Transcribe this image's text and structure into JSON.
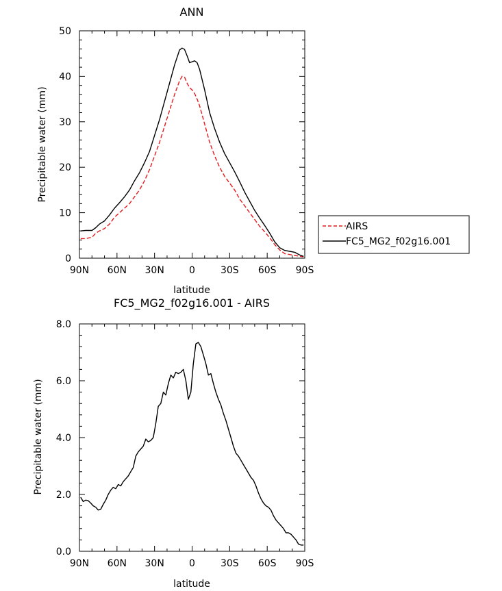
{
  "chart_data": [
    {
      "type": "line",
      "title": "ANN",
      "xlabel": "latitude",
      "ylabel": "Precipitable water (mm)",
      "xlim": [
        90,
        -90
      ],
      "ylim": [
        0,
        50
      ],
      "xticks": [
        90,
        60,
        30,
        0,
        -30,
        -60,
        -90
      ],
      "xtick_labels": [
        "90N",
        "60N",
        "30N",
        "0",
        "30S",
        "60S",
        "90S"
      ],
      "yticks": [
        0,
        10,
        20,
        30,
        40,
        50
      ],
      "ytick_labels": [
        "0",
        "10",
        "20",
        "30",
        "40",
        "50"
      ],
      "grid": false,
      "legend_position": "right",
      "series": [
        {
          "name": "AIRS",
          "color": "#e41a1c",
          "dash": "dashed",
          "x": [
            89,
            85,
            80,
            77,
            74,
            70,
            66,
            62,
            58,
            54,
            50,
            46,
            42,
            38,
            34,
            30,
            26,
            22,
            18,
            14,
            10,
            8,
            6,
            4,
            2,
            0,
            -2,
            -4,
            -6,
            -10,
            -14,
            -18,
            -22,
            -26,
            -30,
            -34,
            -38,
            -42,
            -46,
            -50,
            -54,
            -58,
            -62,
            -66,
            -70,
            -74,
            -78,
            -82,
            -86,
            -89
          ],
          "values": [
            4.3,
            4.3,
            4.6,
            5.5,
            6.0,
            6.5,
            7.5,
            9.0,
            10.0,
            11.0,
            12.0,
            13.5,
            15.0,
            17.0,
            19.5,
            22.5,
            25.5,
            29.0,
            32.5,
            36.0,
            39.0,
            40.0,
            39.8,
            38.5,
            37.5,
            37.0,
            36.2,
            35.0,
            33.5,
            29.5,
            25.5,
            22.5,
            20.0,
            18.0,
            16.5,
            15.0,
            13.0,
            11.5,
            10.0,
            8.5,
            7.0,
            5.8,
            4.5,
            3.0,
            1.8,
            1.0,
            0.8,
            0.6,
            0.4,
            0.3
          ]
        },
        {
          "name": "FC5_MG2_f02g16.001",
          "color": "#000000",
          "dash": "solid",
          "x": [
            89,
            85,
            80,
            77,
            74,
            70,
            66,
            62,
            58,
            54,
            50,
            46,
            42,
            38,
            34,
            30,
            26,
            22,
            18,
            14,
            10,
            8,
            6,
            4,
            2,
            0,
            -2,
            -4,
            -6,
            -10,
            -14,
            -18,
            -22,
            -26,
            -30,
            -34,
            -38,
            -42,
            -46,
            -50,
            -54,
            -58,
            -62,
            -66,
            -70,
            -74,
            -78,
            -82,
            -86,
            -89
          ],
          "values": [
            6.0,
            6.1,
            6.1,
            6.7,
            7.5,
            8.2,
            9.5,
            11.0,
            12.2,
            13.5,
            15.0,
            17.0,
            18.8,
            21.0,
            23.5,
            27.0,
            30.5,
            34.5,
            38.5,
            42.5,
            45.8,
            46.2,
            45.9,
            44.5,
            43.0,
            43.2,
            43.4,
            43.0,
            41.5,
            37.0,
            32.0,
            28.5,
            25.5,
            23.0,
            21.0,
            19.0,
            16.8,
            14.5,
            12.5,
            10.5,
            8.8,
            7.2,
            5.5,
            3.6,
            2.3,
            1.7,
            1.5,
            1.3,
            0.7,
            0.4
          ]
        }
      ]
    },
    {
      "type": "line",
      "title": "FC5_MG2_f02g16.001 - AIRS",
      "xlabel": "latitude",
      "ylabel": "Precipitable water (mm)",
      "xlim": [
        90,
        -90
      ],
      "ylim": [
        0,
        8
      ],
      "xticks": [
        90,
        60,
        30,
        0,
        -30,
        -60,
        -90
      ],
      "xtick_labels": [
        "90N",
        "60N",
        "30N",
        "0",
        "30S",
        "60S",
        "90S"
      ],
      "yticks": [
        0,
        2,
        4,
        6,
        8
      ],
      "ytick_labels": [
        "0.0",
        "2.0",
        "4.0",
        "6.0",
        "8.0"
      ],
      "grid": false,
      "series": [
        {
          "color": "#000000",
          "dash": "solid",
          "x": [
            89,
            87,
            85,
            83,
            81,
            79,
            77,
            75,
            73,
            71,
            69,
            67,
            65,
            63,
            61,
            59,
            57,
            55,
            53,
            51,
            49,
            47,
            45,
            43,
            41,
            39,
            37,
            35,
            33,
            31,
            29,
            27,
            25,
            23,
            21,
            19,
            17,
            15,
            13,
            11,
            9,
            7,
            5,
            3,
            1,
            -1,
            -3,
            -5,
            -7,
            -9,
            -11,
            -13,
            -15,
            -17,
            -19,
            -21,
            -23,
            -25,
            -27,
            -29,
            -31,
            -33,
            -35,
            -37,
            -39,
            -41,
            -43,
            -45,
            -47,
            -49,
            -51,
            -53,
            -55,
            -57,
            -59,
            -61,
            -63,
            -65,
            -67,
            -69,
            -71,
            -73,
            -75,
            -77,
            -79,
            -81,
            -83,
            -85,
            -87,
            -89
          ],
          "values": [
            1.9,
            1.75,
            1.8,
            1.78,
            1.7,
            1.6,
            1.55,
            1.45,
            1.48,
            1.65,
            1.8,
            2.0,
            2.15,
            2.25,
            2.2,
            2.35,
            2.3,
            2.45,
            2.55,
            2.65,
            2.8,
            2.95,
            3.35,
            3.5,
            3.6,
            3.7,
            3.95,
            3.85,
            3.9,
            4.0,
            4.5,
            5.1,
            5.2,
            5.6,
            5.5,
            5.9,
            6.2,
            6.1,
            6.3,
            6.25,
            6.3,
            6.4,
            6.0,
            5.35,
            5.6,
            6.6,
            7.3,
            7.35,
            7.2,
            6.9,
            6.6,
            6.2,
            6.25,
            5.9,
            5.6,
            5.35,
            5.15,
            4.85,
            4.6,
            4.3,
            4.0,
            3.7,
            3.45,
            3.35,
            3.2,
            3.05,
            2.9,
            2.75,
            2.6,
            2.5,
            2.3,
            2.05,
            1.85,
            1.7,
            1.6,
            1.55,
            1.45,
            1.25,
            1.1,
            1.0,
            0.9,
            0.8,
            0.65,
            0.65,
            0.6,
            0.5,
            0.4,
            0.25,
            0.22,
            0.22
          ]
        }
      ]
    }
  ]
}
